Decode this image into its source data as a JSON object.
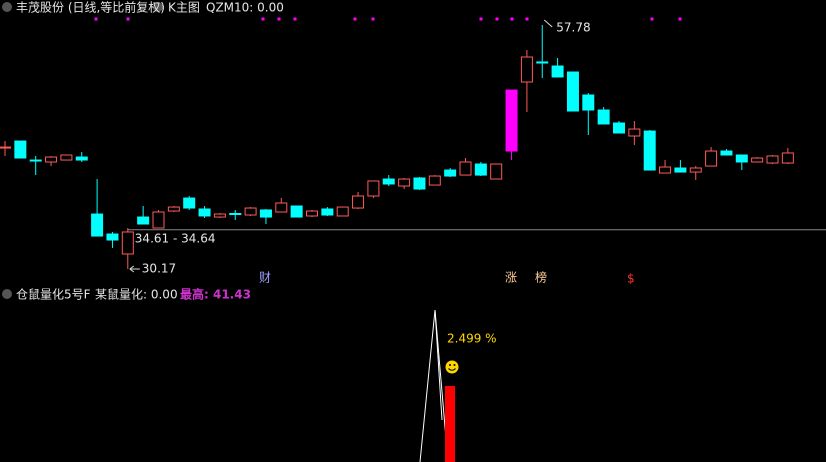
{
  "header": {
    "stock": "丰茂股份 (日线,等比前复权)",
    "panel": "K主图",
    "indicator": "QZM10: 0.00"
  },
  "chart_data": {
    "type": "candlestick",
    "open": [
      43.86,
      44.65,
      42.5,
      42.28,
      42.5,
      42.84,
      36.39,
      34.13,
      31.87,
      36.05,
      34.81,
      36.73,
      38.2,
      36.96,
      36.05,
      36.45,
      36.28,
      36.85,
      36.62,
      37.3,
      36.17,
      36.96,
      36.17,
      37.07,
      38.43,
      40.35,
      39.56,
      40.47,
      39.67,
      41.37,
      40.8,
      42.05,
      40.35,
      43.52,
      51.33,
      53.6,
      53.14,
      52.46,
      49.86,
      48.16,
      46.69,
      45.22,
      45.78,
      41.03,
      41.6,
      41.14,
      41.82,
      43.52,
      43.07,
      42.28,
      42.16,
      42.16
    ],
    "high": [
      44.65,
      44.65,
      42.96,
      42.96,
      43.07,
      43.41,
      40.35,
      34.36,
      34.81,
      37.3,
      36.85,
      37.3,
      38.43,
      37.3,
      36.51,
      36.85,
      37.18,
      36.96,
      38.2,
      37.3,
      36.85,
      37.18,
      37.18,
      38.88,
      40.13,
      40.8,
      40.47,
      40.58,
      40.8,
      41.6,
      42.73,
      42.28,
      42.05,
      50.42,
      54.95,
      57.78,
      54.05,
      52.46,
      50.08,
      48.5,
      46.92,
      46.92,
      45.9,
      42.5,
      42.5,
      41.82,
      43.97,
      43.75,
      43.07,
      42.84,
      43.07,
      43.86
    ],
    "low": [
      42.96,
      42.73,
      40.8,
      41.82,
      42.5,
      42.28,
      33.9,
      32.55,
      30.17,
      35.26,
      34.81,
      36.62,
      36.85,
      35.94,
      35.94,
      35.71,
      36.17,
      35.26,
      36.62,
      36.05,
      36.05,
      36.17,
      36.17,
      36.96,
      38.2,
      39.56,
      39.22,
      39.11,
      39.67,
      40.58,
      40.8,
      40.69,
      40.35,
      42.5,
      47.94,
      51.78,
      51.9,
      48.05,
      45.33,
      46.58,
      45.56,
      44.2,
      41.37,
      41.03,
      41.14,
      40.24,
      41.82,
      43.07,
      41.37,
      42.28,
      42.05,
      42.05
    ],
    "close": [
      43.97,
      42.73,
      42.39,
      42.84,
      43.07,
      42.5,
      33.9,
      33.45,
      34.36,
      35.26,
      36.62,
      37.18,
      37.07,
      36.17,
      36.39,
      36.39,
      37.07,
      36.05,
      37.64,
      36.05,
      36.73,
      36.28,
      37.18,
      38.43,
      40.13,
      39.79,
      40.35,
      39.22,
      40.69,
      40.69,
      42.28,
      40.8,
      42.05,
      50.42,
      54.16,
      53.48,
      51.9,
      48.05,
      48.16,
      46.58,
      45.56,
      46.01,
      41.37,
      41.71,
      41.14,
      41.6,
      43.52,
      43.07,
      42.28,
      42.73,
      42.96,
      43.3
    ],
    "up_color": "#ff5a5a",
    "down_color": "#00ffff",
    "special": [
      {
        "index": 33,
        "color": "#ff00ff"
      }
    ],
    "ylim": [
      28.36,
      60.61
    ],
    "high_note": 57.78,
    "low_note": 30.17,
    "ref_line": {
      "value": 34.61,
      "label": "34.61 - 34.64"
    }
  },
  "markers": [
    "财",
    "涨",
    "榜",
    "$"
  ],
  "sub_panel": {
    "name": "仓鼠量化5号F",
    "value_text": "某鼠量化: 0.00",
    "max_text": "最高: 41.43",
    "pct_text": "2.499 %"
  }
}
